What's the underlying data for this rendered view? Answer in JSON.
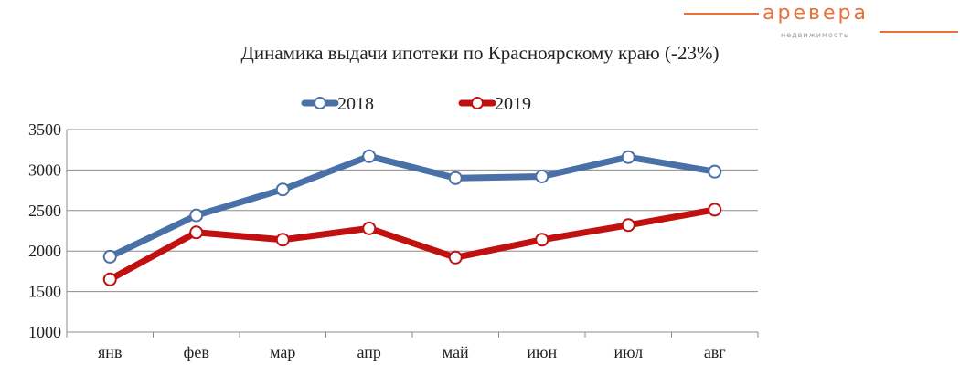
{
  "logo": {
    "word": "аревера",
    "sub": "недвижимость"
  },
  "title": "Динамика выдачи ипотеки по Красноярскому краю (-23%)",
  "colors": {
    "s2018": "#4a70a8",
    "s2019": "#c01010",
    "grid": "#8c8c8c",
    "accent": "#e8703a"
  },
  "chart_data": {
    "type": "line",
    "title": "Динамика выдачи ипотеки по Красноярскому краю (-23%)",
    "xlabel": "",
    "ylabel": "",
    "categories": [
      "янв",
      "фев",
      "мар",
      "апр",
      "май",
      "июн",
      "июл",
      "авг"
    ],
    "ylim": [
      1000,
      3500
    ],
    "yticks": [
      1000,
      1500,
      2000,
      2500,
      3000,
      3500
    ],
    "grid": true,
    "legend": "top-center",
    "series": [
      {
        "name": "2018",
        "values": [
          1930,
          2440,
          2760,
          3170,
          2900,
          2920,
          3160,
          2980
        ]
      },
      {
        "name": "2019",
        "values": [
          1650,
          2230,
          2140,
          2280,
          1920,
          2140,
          2320,
          2510
        ]
      }
    ]
  }
}
